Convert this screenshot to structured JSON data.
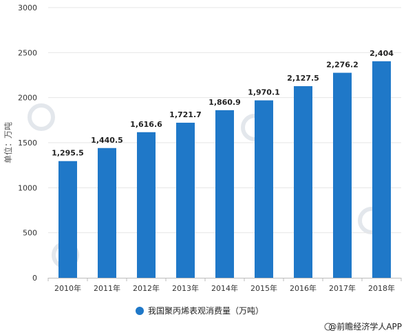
{
  "chart_data": {
    "type": "bar",
    "categories": [
      "2010年",
      "2011年",
      "2012年",
      "2013年",
      "2014年",
      "2015年",
      "2016年",
      "2017年",
      "2018年"
    ],
    "series": [
      {
        "name": "我国聚丙烯表观消费量（万吨）",
        "values": [
          1295.5,
          1440.5,
          1616.6,
          1721.7,
          1860.9,
          1970.1,
          2127.5,
          2276.2,
          2404
        ],
        "labels": [
          "1,295.5",
          "1,440.5",
          "1,616.6",
          "1,721.7",
          "1,860.9",
          "1,970.1",
          "2,127.5",
          "2,276.2",
          "2,404"
        ],
        "color": "#1f78c8"
      }
    ],
    "ylabel": "单位：万吨",
    "xlabel": "",
    "ylim": [
      0,
      3000
    ],
    "yticks": [
      0,
      500,
      1000,
      1500,
      2000,
      2500,
      3000
    ],
    "grid": true,
    "legend_position": "bottom-center"
  },
  "credit": "@前瞻经济学人APP",
  "watermark_color": "#e3e7ec"
}
